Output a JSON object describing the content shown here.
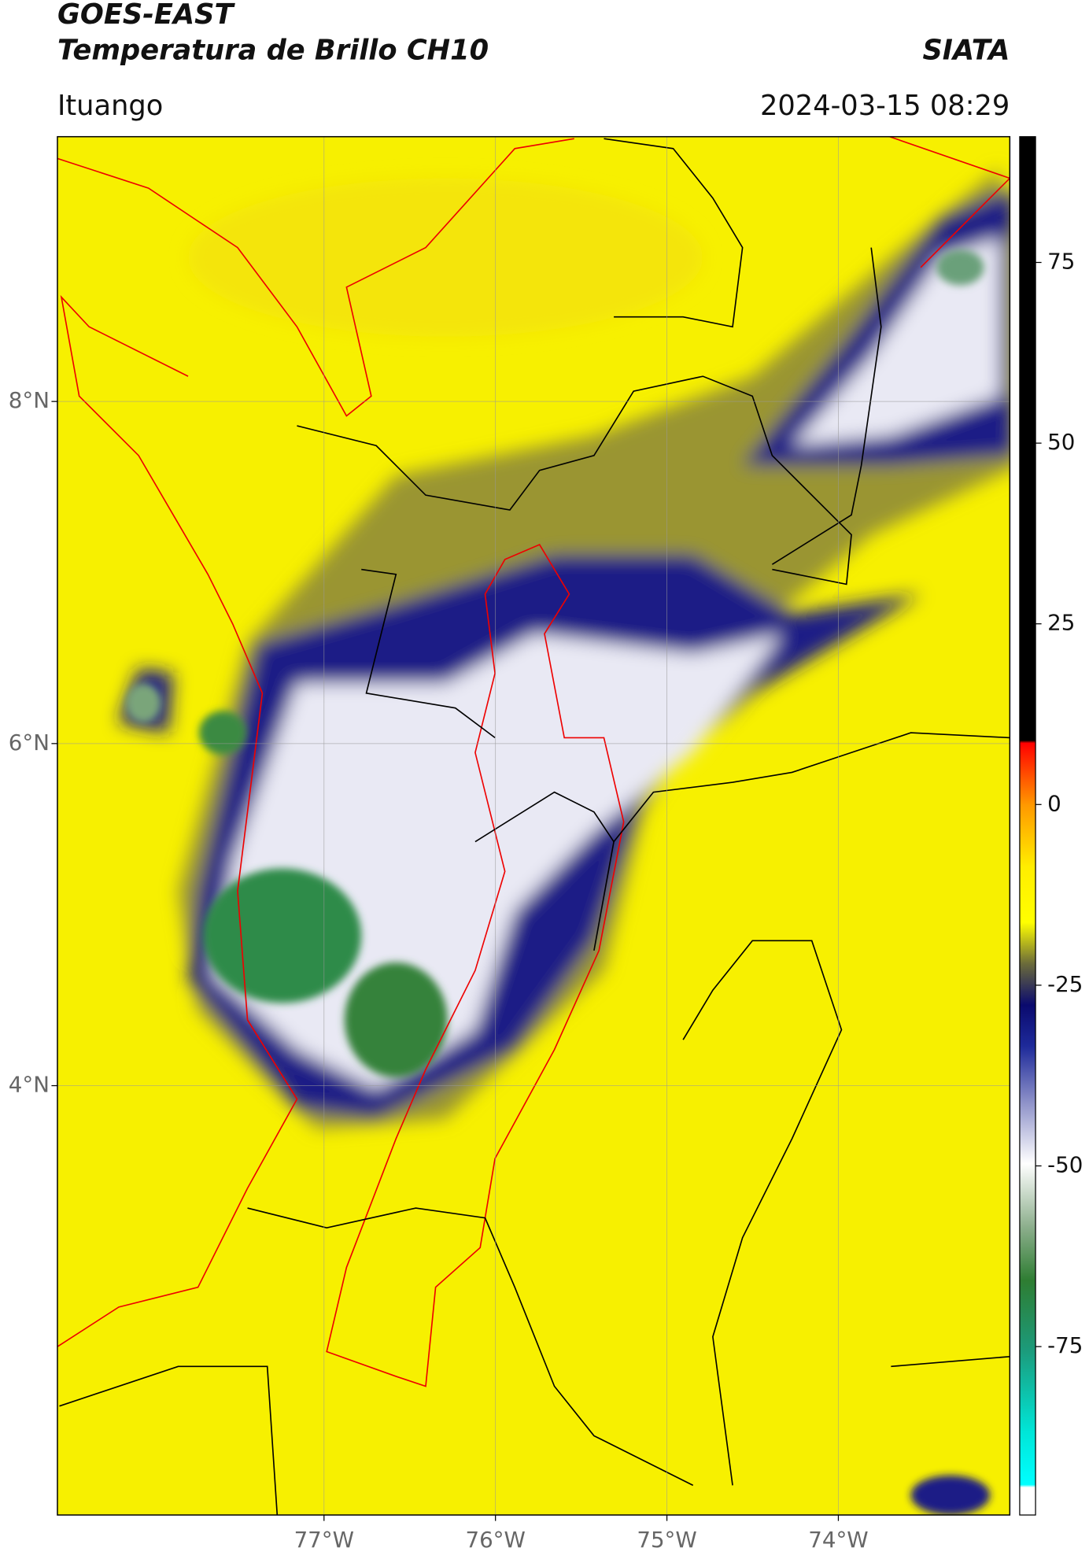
{
  "title": "GOES-EAST",
  "subtitle": "Temperatura de Brillo CH10",
  "brand": "SIATA",
  "region": "Ituango",
  "timestamp": "2024-03-15 08:29",
  "map": {
    "xlim": [
      -78.555,
      -73.0
    ],
    "ylim": [
      1.49,
      9.548
    ],
    "xticks": [
      {
        "value": -77,
        "label": "77°W"
      },
      {
        "value": -76,
        "label": "76°W"
      },
      {
        "value": -75,
        "label": "75°W"
      },
      {
        "value": -74,
        "label": "74°W"
      }
    ],
    "yticks": [
      {
        "value": 8,
        "label": "8°N"
      },
      {
        "value": 6,
        "label": "6°N"
      },
      {
        "value": 4,
        "label": "4°N"
      }
    ],
    "grid": true
  },
  "colorbar": {
    "lim": [
      -98.3,
      92.4
    ],
    "ticks": [
      75,
      50,
      25,
      0,
      -25,
      -50,
      -75
    ]
  }
}
